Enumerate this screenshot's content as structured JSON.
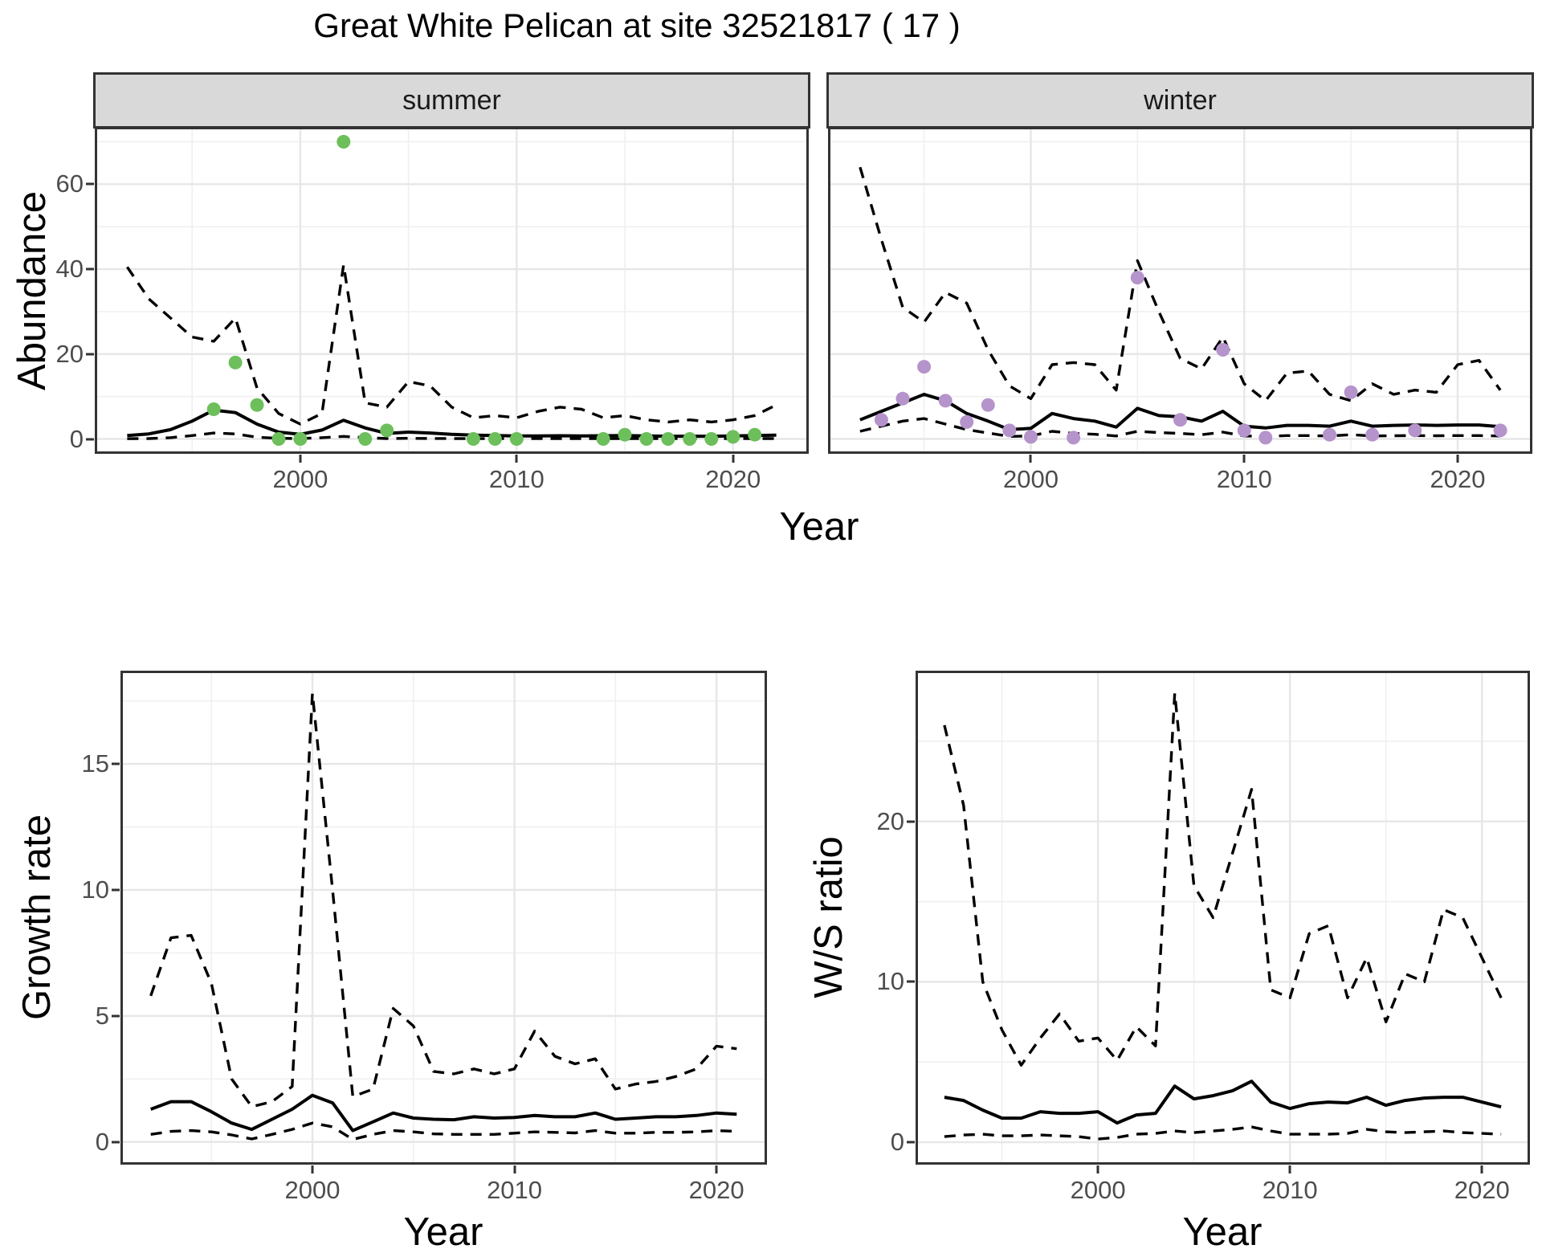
{
  "title": "Great White Pelican at site 32521817 ( 17 )",
  "colors": {
    "summer_point": "#6CBF5B",
    "winter_point": "#B593CB",
    "line": "#000000",
    "strip_bg": "#D9D9D9",
    "strip_border": "#333333",
    "panel_border": "#333333",
    "grid_major": "#E7E7E7",
    "grid_minor": "#F0F0F0",
    "tick_text": "#4D4D4D",
    "background": "#FFFFFF"
  },
  "chart_data": [
    {
      "id": "abundance-summer",
      "type": "line",
      "facet": "summer",
      "xlabel": "Year",
      "ylabel": "Abundance",
      "legend": "none",
      "axes": {
        "xlim": [
          1990.5,
          2023.5
        ],
        "ylim": [
          -3.5,
          73.5
        ],
        "xticks": [
          2000,
          2010,
          2020
        ],
        "yticks": [
          0,
          20,
          40,
          60
        ],
        "xminor": [
          1995,
          2005,
          2015
        ],
        "yminor": [
          10,
          30,
          50,
          70
        ],
        "grid": true
      },
      "x": [
        1992,
        1993,
        1994,
        1995,
        1996,
        1997,
        1998,
        1999,
        2000,
        2001,
        2002,
        2003,
        2004,
        2005,
        2006,
        2007,
        2008,
        2009,
        2010,
        2011,
        2012,
        2013,
        2014,
        2015,
        2016,
        2017,
        2018,
        2019,
        2020,
        2021,
        2022
      ],
      "series": [
        {
          "name": "upper_95ci",
          "style": "dashed",
          "values": [
            40.5,
            33,
            28.5,
            24,
            23,
            28.5,
            12,
            6,
            3.5,
            6,
            41,
            8.5,
            7.5,
            13.5,
            12.5,
            7.5,
            5,
            5.5,
            5,
            6.5,
            7.5,
            7,
            5,
            5.5,
            4.5,
            4,
            4.5,
            4,
            4.5,
            5.5,
            8
          ]
        },
        {
          "name": "median",
          "style": "solid",
          "values": [
            0.8,
            1.2,
            2.2,
            4.2,
            6.8,
            6.2,
            3.5,
            1.6,
            1.1,
            2.1,
            4.4,
            2.6,
            1.3,
            1.6,
            1.4,
            1.1,
            0.9,
            0.8,
            0.7,
            0.7,
            0.75,
            0.7,
            0.75,
            0.8,
            0.7,
            0.65,
            0.65,
            0.65,
            0.7,
            0.8,
            0.9
          ]
        },
        {
          "name": "lower_95ci",
          "style": "dashed",
          "values": [
            0.05,
            0.1,
            0.3,
            0.8,
            1.4,
            1.2,
            0.4,
            0.15,
            0.1,
            0.3,
            0.6,
            0.3,
            0.1,
            0.15,
            0.12,
            0.1,
            0.08,
            0.08,
            0.08,
            0.1,
            0.1,
            0.1,
            0.08,
            0.1,
            0.08,
            0.08,
            0.08,
            0.08,
            0.1,
            0.1,
            0.1
          ]
        }
      ],
      "points": {
        "name": "observed-counts-summer",
        "color_key": "summer_point",
        "x": [
          1996,
          1997,
          1998,
          1999,
          2000,
          2002,
          2003,
          2004,
          2008,
          2009,
          2010,
          2014,
          2015,
          2016,
          2017,
          2018,
          2019,
          2020,
          2021
        ],
        "y": [
          7,
          18,
          8,
          0,
          0,
          70,
          0,
          2,
          0,
          0,
          0,
          0,
          1,
          0,
          0,
          0,
          0,
          0.5,
          1
        ]
      }
    },
    {
      "id": "abundance-winter",
      "type": "line",
      "facet": "winter",
      "xlabel": "Year",
      "ylabel": "Abundance",
      "legend": "none",
      "axes": {
        "xlim": [
          1990.5,
          2023.5
        ],
        "ylim": [
          -3.5,
          73.5
        ],
        "xticks": [
          2000,
          2010,
          2020
        ],
        "yticks": [
          0,
          20,
          40,
          60
        ],
        "xminor": [
          1995,
          2005,
          2015
        ],
        "yminor": [
          10,
          30,
          50,
          70
        ],
        "grid": true
      },
      "x": [
        1992,
        1993,
        1994,
        1995,
        1996,
        1997,
        1998,
        1999,
        2000,
        2001,
        2002,
        2003,
        2004,
        2005,
        2006,
        2007,
        2008,
        2009,
        2010,
        2011,
        2012,
        2013,
        2014,
        2015,
        2016,
        2017,
        2018,
        2019,
        2020,
        2021,
        2022
      ],
      "series": [
        {
          "name": "upper_95ci",
          "style": "dashed",
          "values": [
            64,
            47,
            31,
            27.5,
            34.5,
            32,
            21,
            12.5,
            9.5,
            17.5,
            18,
            17.5,
            11.5,
            42,
            30,
            19,
            16.5,
            24,
            13,
            9,
            15.5,
            16,
            10.5,
            9,
            13,
            10.5,
            11.5,
            11,
            17.5,
            18.5,
            11.5
          ]
        },
        {
          "name": "median",
          "style": "solid",
          "values": [
            4.5,
            6.5,
            8.5,
            10.5,
            9,
            6,
            4.2,
            2.2,
            2.5,
            6,
            4.8,
            4.2,
            2.8,
            7.2,
            5.5,
            5.2,
            4.2,
            6.5,
            3,
            2.6,
            3.2,
            3.2,
            3,
            4.2,
            3,
            3.2,
            3.3,
            3.2,
            3.3,
            3.3,
            2.9
          ]
        },
        {
          "name": "lower_95ci",
          "style": "dashed",
          "values": [
            1.8,
            3,
            4.2,
            4.8,
            3.5,
            2.2,
            1.4,
            0.6,
            0.7,
            1.8,
            1.3,
            1.1,
            0.7,
            1.8,
            1.5,
            1.3,
            1,
            1.6,
            0.7,
            0.6,
            0.8,
            0.8,
            0.7,
            1,
            0.7,
            0.75,
            0.8,
            0.75,
            0.8,
            0.8,
            0.7
          ]
        }
      ],
      "points": {
        "name": "observed-counts-winter",
        "color_key": "winter_point",
        "x": [
          1993,
          1994,
          1995,
          1996,
          1997,
          1998,
          1999,
          2000,
          2002,
          2005,
          2007,
          2009,
          2010,
          2011,
          2014,
          2015,
          2016,
          2018,
          2022
        ],
        "y": [
          4.5,
          9.5,
          17,
          9,
          4,
          8,
          2,
          0.5,
          0.3,
          38,
          4.5,
          21,
          2,
          0.3,
          1,
          11,
          1,
          2,
          2
        ]
      }
    },
    {
      "id": "growth-rate",
      "type": "line",
      "facet": "",
      "xlabel": "Year",
      "ylabel": "Growth rate",
      "legend": "none",
      "axes": {
        "xlim": [
          1990.5,
          2022.5
        ],
        "ylim": [
          -0.9,
          18.7
        ],
        "xticks": [
          2000,
          2010,
          2020
        ],
        "yticks": [
          0,
          5,
          10,
          15
        ],
        "xminor": [
          1995,
          2005,
          2015
        ],
        "yminor": [
          2.5,
          7.5,
          12.5,
          17.5
        ],
        "grid": true
      },
      "x": [
        1992,
        1993,
        1994,
        1995,
        1996,
        1997,
        1998,
        1999,
        2000,
        2001,
        2002,
        2003,
        2004,
        2005,
        2006,
        2007,
        2008,
        2009,
        2010,
        2011,
        2012,
        2013,
        2014,
        2015,
        2016,
        2017,
        2018,
        2019,
        2020,
        2021
      ],
      "series": [
        {
          "name": "upper_95ci",
          "style": "dashed",
          "values": [
            5.8,
            8.1,
            8.2,
            6.3,
            2.5,
            1.4,
            1.6,
            2.2,
            17.8,
            10,
            1.8,
            2.1,
            5.3,
            4.6,
            2.8,
            2.7,
            2.9,
            2.7,
            2.9,
            4.4,
            3.4,
            3.1,
            3.3,
            2.1,
            2.3,
            2.4,
            2.6,
            2.9,
            3.8,
            3.7
          ]
        },
        {
          "name": "median",
          "style": "solid",
          "values": [
            1.3,
            1.6,
            1.6,
            1.2,
            0.75,
            0.5,
            0.9,
            1.3,
            1.85,
            1.55,
            0.45,
            0.8,
            1.15,
            0.95,
            0.9,
            0.88,
            1,
            0.95,
            0.97,
            1.05,
            1,
            1,
            1.15,
            0.9,
            0.95,
            1,
            1,
            1.05,
            1.15,
            1.1
          ]
        },
        {
          "name": "lower_95ci",
          "style": "dashed",
          "values": [
            0.3,
            0.42,
            0.45,
            0.4,
            0.28,
            0.12,
            0.3,
            0.5,
            0.75,
            0.6,
            0.1,
            0.3,
            0.45,
            0.4,
            0.32,
            0.3,
            0.3,
            0.3,
            0.35,
            0.4,
            0.38,
            0.36,
            0.45,
            0.35,
            0.35,
            0.38,
            0.38,
            0.4,
            0.45,
            0.42
          ]
        }
      ],
      "points": null
    },
    {
      "id": "ws-ratio",
      "type": "line",
      "facet": "",
      "xlabel": "Year",
      "ylabel": "W/S ratio",
      "legend": "none",
      "axes": {
        "xlim": [
          1990.5,
          2022.5
        ],
        "ylim": [
          -1.4,
          29.4
        ],
        "xticks": [
          2000,
          2010,
          2020
        ],
        "yticks": [
          0,
          10,
          20
        ],
        "xminor": [
          1995,
          2005,
          2015
        ],
        "yminor": [
          5,
          15,
          25
        ],
        "grid": true
      },
      "x": [
        1992,
        1993,
        1994,
        1995,
        1996,
        1997,
        1998,
        1999,
        2000,
        2001,
        2002,
        2003,
        2004,
        2005,
        2006,
        2007,
        2008,
        2009,
        2010,
        2011,
        2012,
        2013,
        2014,
        2015,
        2016,
        2017,
        2018,
        2019,
        2020,
        2021
      ],
      "series": [
        {
          "name": "upper_95ci",
          "style": "dashed",
          "values": [
            26,
            21,
            10,
            7,
            4.8,
            6.5,
            8,
            6.3,
            6.5,
            5.1,
            7.2,
            6,
            28,
            16,
            14,
            18,
            22,
            9.5,
            9,
            13,
            13.5,
            9,
            11.5,
            7.5,
            10.5,
            10,
            14.5,
            14,
            11.5,
            9
          ]
        },
        {
          "name": "median",
          "style": "solid",
          "values": [
            2.8,
            2.6,
            2,
            1.5,
            1.5,
            1.9,
            1.8,
            1.8,
            1.9,
            1.2,
            1.7,
            1.8,
            3.5,
            2.7,
            2.9,
            3.2,
            3.8,
            2.5,
            2.1,
            2.4,
            2.5,
            2.45,
            2.8,
            2.3,
            2.6,
            2.75,
            2.8,
            2.8,
            2.5,
            2.2
          ]
        },
        {
          "name": "lower_95ci",
          "style": "dashed",
          "values": [
            0.35,
            0.45,
            0.5,
            0.4,
            0.4,
            0.45,
            0.4,
            0.35,
            0.2,
            0.3,
            0.5,
            0.55,
            0.7,
            0.6,
            0.7,
            0.8,
            0.95,
            0.7,
            0.5,
            0.5,
            0.5,
            0.55,
            0.8,
            0.65,
            0.6,
            0.65,
            0.7,
            0.6,
            0.55,
            0.5
          ]
        }
      ],
      "points": null
    }
  ]
}
